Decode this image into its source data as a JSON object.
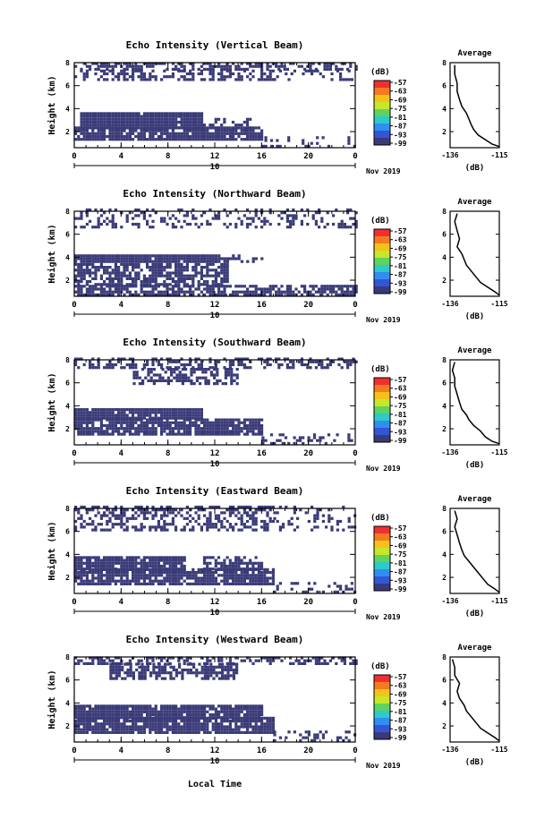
{
  "figure": {
    "bottom_xlabel": "Local Time",
    "date_label": "Nov 2019",
    "day_label": "10",
    "cbar_unit": "(dB)",
    "avg_title": "Average",
    "avg_xlabel": "(dB)"
  },
  "colors": {
    "echo_fill": "#3a3a78",
    "colorbar": [
      "#f03030",
      "#f57a20",
      "#f5c21a",
      "#c8e62a",
      "#5fd35f",
      "#2ec9c9",
      "#2f8ef0",
      "#3455d6",
      "#3a3a78"
    ]
  },
  "chart_data": [
    {
      "type": "heatmap",
      "title": "Echo Intensity (Vertical Beam)",
      "ylabel": "Height (km)",
      "ylim": [
        0.6,
        8
      ],
      "yticks": [
        "2",
        "4",
        "6",
        "8"
      ],
      "xlim": [
        0,
        24
      ],
      "xticks": [
        "0",
        "4",
        "8",
        "12",
        "16",
        "20",
        "0"
      ],
      "colorbar_ticks": [
        "-57",
        "-63",
        "-69",
        "-75",
        "-81",
        "-87",
        "-93",
        "-99"
      ],
      "coverage": [
        {
          "x0": 0,
          "x1": 24,
          "y0": 7.3,
          "y1": 8.0,
          "density": 0.55
        },
        {
          "x0": 0,
          "x1": 17,
          "y0": 6.4,
          "y1": 7.3,
          "density": 0.45
        },
        {
          "x0": 17,
          "x1": 24,
          "y0": 6.4,
          "y1": 7.3,
          "density": 0.3
        },
        {
          "x0": 0.5,
          "x1": 11,
          "y0": 2.2,
          "y1": 3.5,
          "density": 0.97
        },
        {
          "x0": 11,
          "x1": 15,
          "y0": 2.2,
          "y1": 3.0,
          "density": 0.45
        },
        {
          "x0": 0,
          "x1": 16,
          "y0": 1.2,
          "y1": 2.2,
          "density": 0.9
        },
        {
          "x0": 16,
          "x1": 24,
          "y0": 0.6,
          "y1": 1.4,
          "density": 0.25
        }
      ],
      "average_profile": {
        "xlabel": "(dB)",
        "xlim": [
          -136,
          -115
        ],
        "xticks": [
          "-136",
          "-115"
        ],
        "yticks": [
          "2",
          "4",
          "6",
          "8"
        ],
        "ylim": [
          0.6,
          8
        ],
        "x": [
          -115,
          -118,
          -121,
          -124,
          -126,
          -127,
          -128,
          -129,
          -131,
          -132,
          -133,
          -133,
          -134,
          -134
        ],
        "y": [
          0.7,
          0.9,
          1.3,
          1.7,
          2.2,
          2.6,
          3.1,
          3.6,
          4.2,
          4.8,
          5.5,
          6.2,
          7.0,
          7.8
        ]
      }
    },
    {
      "type": "heatmap",
      "title": "Echo Intensity (Northward Beam)",
      "ylabel": "Height (km)",
      "ylim": [
        0.6,
        8
      ],
      "yticks": [
        "2",
        "4",
        "6",
        "8"
      ],
      "xlim": [
        0,
        24
      ],
      "xticks": [
        "0",
        "4",
        "8",
        "12",
        "16",
        "20",
        "0"
      ],
      "colorbar_ticks": [
        "-57",
        "-63",
        "-69",
        "-75",
        "-81",
        "-87",
        "-93",
        "-99"
      ],
      "coverage": [
        {
          "x0": 0,
          "x1": 24,
          "y0": 6.5,
          "y1": 8.0,
          "density": 0.28
        },
        {
          "x0": 0,
          "x1": 12,
          "y0": 3.5,
          "y1": 4.1,
          "density": 0.97
        },
        {
          "x0": 12,
          "x1": 16,
          "y0": 3.5,
          "y1": 4.0,
          "density": 0.4
        },
        {
          "x0": 0,
          "x1": 13,
          "y0": 1.5,
          "y1": 3.4,
          "density": 0.75
        },
        {
          "x0": 0,
          "x1": 24,
          "y0": 0.6,
          "y1": 1.5,
          "density": 0.7
        }
      ],
      "average_profile": {
        "xlabel": "(dB)",
        "xlim": [
          -136,
          -115
        ],
        "xticks": [
          "-136",
          "-115"
        ],
        "yticks": [
          "2",
          "4",
          "6",
          "8"
        ],
        "ylim": [
          0.6,
          8
        ],
        "x": [
          -115,
          -117,
          -120,
          -123,
          -125,
          -127,
          -129,
          -130,
          -131,
          -133,
          -132,
          -133,
          -134,
          -133
        ],
        "y": [
          0.7,
          1.0,
          1.4,
          1.8,
          2.3,
          2.8,
          3.3,
          3.8,
          4.3,
          4.9,
          5.6,
          6.3,
          7.1,
          7.8
        ]
      }
    },
    {
      "type": "heatmap",
      "title": "Echo Intensity (Southward Beam)",
      "ylabel": "Height (km)",
      "ylim": [
        0.6,
        8
      ],
      "yticks": [
        "2",
        "4",
        "6",
        "8"
      ],
      "xlim": [
        0,
        24
      ],
      "xticks": [
        "0",
        "4",
        "8",
        "12",
        "16",
        "20",
        "0"
      ],
      "colorbar_ticks": [
        "-57",
        "-63",
        "-69",
        "-75",
        "-81",
        "-87",
        "-93",
        "-99"
      ],
      "coverage": [
        {
          "x0": 0,
          "x1": 24,
          "y0": 7.2,
          "y1": 8.0,
          "density": 0.45
        },
        {
          "x0": 5,
          "x1": 14,
          "y0": 5.8,
          "y1": 7.2,
          "density": 0.55
        },
        {
          "x0": 0,
          "x1": 11,
          "y0": 2.8,
          "y1": 3.6,
          "density": 0.95
        },
        {
          "x0": 0,
          "x1": 16,
          "y0": 1.4,
          "y1": 2.8,
          "density": 0.85
        },
        {
          "x0": 16,
          "x1": 24,
          "y0": 0.6,
          "y1": 1.5,
          "density": 0.3
        }
      ],
      "average_profile": {
        "xlabel": "(dB)",
        "xlim": [
          -136,
          -115
        ],
        "xticks": [
          "-136",
          "-115"
        ],
        "yticks": [
          "2",
          "4",
          "6",
          "8"
        ],
        "ylim": [
          0.6,
          8
        ],
        "x": [
          -115,
          -118,
          -121,
          -123,
          -126,
          -128,
          -129,
          -131,
          -132,
          -133,
          -134,
          -134,
          -135,
          -134
        ],
        "y": [
          0.7,
          0.9,
          1.3,
          1.8,
          2.3,
          2.8,
          3.2,
          3.7,
          4.3,
          5.0,
          5.7,
          6.4,
          7.1,
          7.8
        ]
      }
    },
    {
      "type": "heatmap",
      "title": "Echo Intensity (Eastward Beam)",
      "ylabel": "Height (km)",
      "ylim": [
        0.6,
        8
      ],
      "yticks": [
        "2",
        "4",
        "6",
        "8"
      ],
      "xlim": [
        0,
        24
      ],
      "xticks": [
        "0",
        "4",
        "8",
        "12",
        "16",
        "20",
        "0"
      ],
      "colorbar_ticks": [
        "-57",
        "-63",
        "-69",
        "-75",
        "-81",
        "-87",
        "-93",
        "-99"
      ],
      "coverage": [
        {
          "x0": 0,
          "x1": 17,
          "y0": 6.0,
          "y1": 8.0,
          "density": 0.5
        },
        {
          "x0": 17,
          "x1": 24,
          "y0": 6.0,
          "y1": 8.0,
          "density": 0.2
        },
        {
          "x0": 0,
          "x1": 9.5,
          "y0": 2.6,
          "y1": 3.8,
          "density": 0.95
        },
        {
          "x0": 11,
          "x1": 16,
          "y0": 2.6,
          "y1": 3.6,
          "density": 0.6
        },
        {
          "x0": 0,
          "x1": 17,
          "y0": 1.3,
          "y1": 2.6,
          "density": 0.9
        },
        {
          "x0": 17,
          "x1": 24,
          "y0": 0.6,
          "y1": 1.4,
          "density": 0.3
        }
      ],
      "average_profile": {
        "xlabel": "(dB)",
        "xlim": [
          -136,
          -115
        ],
        "xticks": [
          "-136",
          "-115"
        ],
        "yticks": [
          "2",
          "4",
          "6",
          "8"
        ],
        "ylim": [
          0.6,
          8
        ],
        "x": [
          -115,
          -117,
          -120,
          -122,
          -124,
          -126,
          -128,
          -130,
          -131,
          -132,
          -133,
          -134,
          -133,
          -134
        ],
        "y": [
          0.7,
          1.0,
          1.4,
          1.9,
          2.4,
          2.9,
          3.4,
          3.9,
          4.4,
          5.0,
          5.7,
          6.4,
          7.1,
          7.8
        ]
      }
    },
    {
      "type": "heatmap",
      "title": "Echo Intensity (Westward Beam)",
      "ylabel": "Height (km)",
      "ylim": [
        0.6,
        8
      ],
      "yticks": [
        "2",
        "4",
        "6",
        "8"
      ],
      "xlim": [
        0,
        24
      ],
      "xticks": [
        "0",
        "4",
        "8",
        "12",
        "16",
        "20",
        "0"
      ],
      "colorbar_ticks": [
        "-57",
        "-63",
        "-69",
        "-75",
        "-81",
        "-87",
        "-93",
        "-99"
      ],
      "coverage": [
        {
          "x0": 0,
          "x1": 24,
          "y0": 7.3,
          "y1": 8.0,
          "density": 0.45
        },
        {
          "x0": 3,
          "x1": 14,
          "y0": 6.0,
          "y1": 7.3,
          "density": 0.6
        },
        {
          "x0": 0,
          "x1": 16,
          "y0": 2.6,
          "y1": 3.8,
          "density": 0.92
        },
        {
          "x0": 0,
          "x1": 17,
          "y0": 1.3,
          "y1": 2.6,
          "density": 0.88
        },
        {
          "x0": 17,
          "x1": 24,
          "y0": 0.6,
          "y1": 1.4,
          "density": 0.3
        }
      ],
      "average_profile": {
        "xlabel": "(dB)",
        "xlim": [
          -136,
          -115
        ],
        "xticks": [
          "-136",
          "-115"
        ],
        "yticks": [
          "2",
          "4",
          "6",
          "8"
        ],
        "ylim": [
          0.6,
          8
        ],
        "x": [
          -115,
          -117,
          -120,
          -123,
          -125,
          -127,
          -129,
          -130,
          -132,
          -133,
          -132,
          -134,
          -134,
          -135
        ],
        "y": [
          0.7,
          1.0,
          1.4,
          1.8,
          2.3,
          2.8,
          3.3,
          3.8,
          4.4,
          5.0,
          5.7,
          6.4,
          7.1,
          7.8
        ]
      }
    }
  ]
}
